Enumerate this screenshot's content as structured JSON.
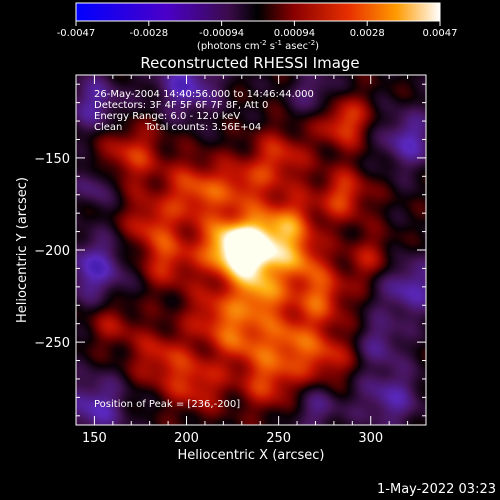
{
  "colorbar": {
    "ticks": [
      "-0.0047",
      "-0.0028",
      "-0.00094",
      "0.00094",
      "0.0028",
      "0.0047"
    ],
    "units_prefix": "(photons cm",
    "units_sup1": "-2",
    "units_mid": " s",
    "units_sup2": "-1",
    "units_mid2": " asec",
    "units_sup3": "-2",
    "units_suffix": ")",
    "colors": [
      "#0000ff",
      "#4b00c8",
      "#5a1a6e",
      "#000000",
      "#8b0000",
      "#e83000",
      "#ff9a00",
      "#ffffff"
    ]
  },
  "title": "Reconstructed RHESSI Image",
  "info": {
    "line1": "26-May-2004 14:40:56.000 to 14:46:44.000",
    "line2": "Detectors: 3F 4F 5F 6F 7F 8F, Att 0",
    "line3": "Energy Range: 6.0 - 12.0 keV",
    "line4_left": "Clean",
    "line4_right": "Total counts: 3.56E+04",
    "peak": "Position of Peak = [236,-200]"
  },
  "chart_data": {
    "type": "heatmap",
    "title": "Reconstructed RHESSI Image",
    "xlabel": "Heliocentric X (arcsec)",
    "ylabel": "Heliocentric Y (arcsec)",
    "xlim": [
      140,
      330
    ],
    "ylim": [
      -295,
      -105
    ],
    "x_ticks": [
      150,
      200,
      250,
      300
    ],
    "y_ticks": [
      -150,
      -200,
      -250
    ],
    "x_tick_labels": [
      "150",
      "200",
      "250",
      "300"
    ],
    "y_tick_labels": [
      "−150",
      "−200",
      "−250"
    ],
    "peak": [
      236,
      -200
    ],
    "value_range": [
      -0.0047,
      0.0047
    ],
    "blobs": [
      {
        "x": 236,
        "y": -200,
        "s": 12,
        "a": 1.0
      },
      {
        "x": 222,
        "y": -198,
        "s": 11,
        "a": 0.65
      },
      {
        "x": 255,
        "y": -185,
        "s": 11,
        "a": 0.55
      },
      {
        "x": 205,
        "y": -168,
        "s": 12,
        "a": 0.55
      },
      {
        "x": 240,
        "y": -225,
        "s": 10,
        "a": 0.6
      },
      {
        "x": 272,
        "y": -225,
        "s": 11,
        "a": 0.55
      },
      {
        "x": 262,
        "y": -205,
        "s": 9,
        "a": 0.45
      },
      {
        "x": 190,
        "y": -205,
        "s": 11,
        "a": 0.45
      },
      {
        "x": 170,
        "y": -148,
        "s": 12,
        "a": 0.45
      },
      {
        "x": 285,
        "y": -130,
        "s": 10,
        "a": 0.55
      },
      {
        "x": 285,
        "y": -170,
        "s": 10,
        "a": 0.5
      },
      {
        "x": 250,
        "y": -150,
        "s": 11,
        "a": 0.45
      },
      {
        "x": 215,
        "y": -235,
        "s": 11,
        "a": 0.45
      },
      {
        "x": 185,
        "y": -258,
        "s": 11,
        "a": 0.4
      },
      {
        "x": 205,
        "y": -272,
        "s": 11,
        "a": 0.45
      },
      {
        "x": 245,
        "y": -270,
        "s": 12,
        "a": 0.5
      },
      {
        "x": 275,
        "y": -258,
        "s": 11,
        "a": 0.45
      },
      {
        "x": 230,
        "y": -248,
        "s": 10,
        "a": 0.45
      },
      {
        "x": 255,
        "y": -248,
        "s": 10,
        "a": 0.45
      },
      {
        "x": 160,
        "y": -240,
        "s": 9,
        "a": 0.3
      },
      {
        "x": 300,
        "y": -205,
        "s": 10,
        "a": 0.35
      },
      {
        "x": 180,
        "y": -185,
        "s": 10,
        "a": 0.4
      },
      {
        "x": 230,
        "y": -165,
        "s": 10,
        "a": 0.4
      },
      {
        "x": 150,
        "y": -285,
        "s": 12,
        "a": -0.5
      },
      {
        "x": 150,
        "y": -210,
        "s": 12,
        "a": -0.55
      },
      {
        "x": 150,
        "y": -120,
        "s": 11,
        "a": -0.45
      },
      {
        "x": 200,
        "y": -110,
        "s": 12,
        "a": -0.55
      },
      {
        "x": 320,
        "y": -140,
        "s": 11,
        "a": -0.5
      },
      {
        "x": 320,
        "y": -220,
        "s": 12,
        "a": -0.5
      },
      {
        "x": 310,
        "y": -280,
        "s": 12,
        "a": -0.45
      },
      {
        "x": 150,
        "y": -165,
        "s": 8,
        "a": -0.35
      },
      {
        "x": 305,
        "y": -250,
        "s": 9,
        "a": -0.35
      },
      {
        "x": 270,
        "y": -115,
        "s": 9,
        "a": -0.35
      },
      {
        "x": 270,
        "y": -285,
        "s": 10,
        "a": -0.35
      }
    ]
  },
  "timestamp": "1-May-2022 03:23"
}
